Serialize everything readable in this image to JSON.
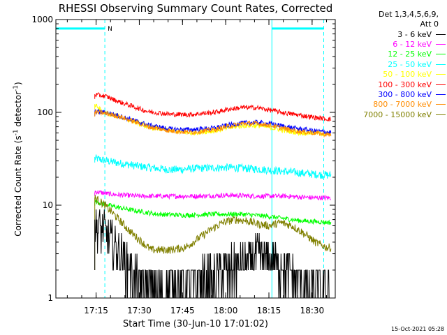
{
  "chart_data": {
    "type": "line",
    "title": "RHESSI Observing Summary Count Rates, Corrected",
    "xlabel": "Start Time (30-Jun-10 17:01:02)",
    "ylabel": "Corrected Count Rate (s-1 detector-1)",
    "ylabel_parts": {
      "pre": "Corrected Count Rate (s",
      "sup1": "-1",
      "mid": " detector",
      "sup2": "-1",
      "post": ")"
    },
    "ylog": true,
    "ylim": [
      1,
      1000
    ],
    "xlim_minutes": [
      0,
      97
    ],
    "xticks": [
      "17:15",
      "17:30",
      "17:45",
      "18:00",
      "18:15",
      "18:30"
    ],
    "yticks": [
      "1",
      "10",
      "100",
      "1000"
    ],
    "legend_header": [
      "Det 1,3,4,5,6,9,",
      "Att 0"
    ],
    "series": [
      {
        "name": "3 - 6 keV",
        "color": "#000000",
        "times": [
          13.5,
          17,
          21,
          25,
          30,
          40,
          50,
          60,
          70,
          75,
          80,
          85,
          89,
          93,
          95.5
        ],
        "values": [
          6,
          5,
          3.5,
          2.2,
          1.3,
          1.3,
          1.5,
          2.0,
          2.8,
          2.5,
          2.0,
          1.5,
          1.3,
          1.3,
          1.3
        ]
      },
      {
        "name": "6 - 12 keV",
        "color": "#ff00ff",
        "times": [
          13.5,
          20,
          30,
          40,
          50,
          60,
          70,
          80,
          90,
          95.5
        ],
        "values": [
          14,
          13,
          12.5,
          12.5,
          12.5,
          12.8,
          12.5,
          12.5,
          12.0,
          12.0
        ]
      },
      {
        "name": "12 - 25 keV",
        "color": "#00ff00",
        "times": [
          13.5,
          18,
          25,
          35,
          45,
          55,
          65,
          75,
          85,
          95.5
        ],
        "values": [
          11,
          10,
          9,
          8,
          7.8,
          8,
          8,
          7.5,
          6.8,
          6.5
        ]
      },
      {
        "name": "25 - 50 keV",
        "color": "#00ffff",
        "times": [
          13.5,
          20,
          30,
          40,
          50,
          60,
          70,
          80,
          90,
          95.5
        ],
        "values": [
          32,
          29,
          26,
          24,
          25,
          25.5,
          24.5,
          23,
          21.5,
          21
        ]
      },
      {
        "name": "50 - 100 keV",
        "color": "#ffff00",
        "times": [
          13.5,
          17,
          22,
          27,
          32,
          40,
          47,
          55,
          60,
          65,
          70,
          75,
          80,
          85,
          90,
          95.5
        ],
        "values": [
          120,
          98,
          90,
          80,
          70,
          63,
          60,
          63,
          68,
          72,
          72,
          68,
          63,
          60,
          60,
          58
        ]
      },
      {
        "name": "100 - 300 keV",
        "color": "#ff0000",
        "times": [
          13.5,
          17,
          22,
          27,
          32,
          40,
          47,
          55,
          60,
          65,
          70,
          75,
          80,
          85,
          90,
          95.5
        ],
        "values": [
          155,
          150,
          130,
          115,
          102,
          95,
          95,
          100,
          108,
          113,
          112,
          105,
          98,
          93,
          88,
          84
        ]
      },
      {
        "name": "300 - 800 keV",
        "color": "#0000ff",
        "times": [
          13.5,
          17,
          22,
          27,
          32,
          40,
          47,
          55,
          60,
          65,
          70,
          75,
          80,
          85,
          90,
          95.5
        ],
        "values": [
          102,
          100,
          92,
          82,
          73,
          66,
          65,
          68,
          73,
          77,
          78,
          75,
          70,
          66,
          63,
          61
        ]
      },
      {
        "name": "800 - 7000 keV",
        "color": "#ff8c00",
        "times": [
          13.5,
          17,
          22,
          27,
          32,
          40,
          47,
          55,
          60,
          65,
          70,
          75,
          80,
          85,
          90,
          95.5
        ],
        "values": [
          100,
          98,
          90,
          80,
          70,
          63,
          61,
          65,
          71,
          76,
          76,
          72,
          66,
          62,
          60,
          57
        ]
      },
      {
        "name": "7000 - 15000 keV",
        "color": "#808000",
        "times": [
          13.5,
          17,
          21,
          25,
          28,
          33,
          40,
          45,
          50,
          54,
          58,
          62,
          66,
          70,
          74,
          78,
          82,
          86,
          90,
          94,
          95.5
        ],
        "values": [
          12,
          10,
          7.5,
          5.5,
          4.5,
          3.3,
          3.3,
          3.5,
          4.5,
          5.5,
          6.5,
          7,
          6.8,
          6.3,
          6,
          6.5,
          6.0,
          5.0,
          4.0,
          3.5,
          3.5
        ]
      }
    ],
    "flags": {
      "label": "N",
      "color": "#00ffff",
      "bar_level": 800,
      "bars": [
        [
          0,
          17
        ],
        [
          75,
          93
        ]
      ],
      "markers": [
        17,
        75,
        93
      ]
    },
    "timestamp": "15-Oct-2021 05:28"
  }
}
